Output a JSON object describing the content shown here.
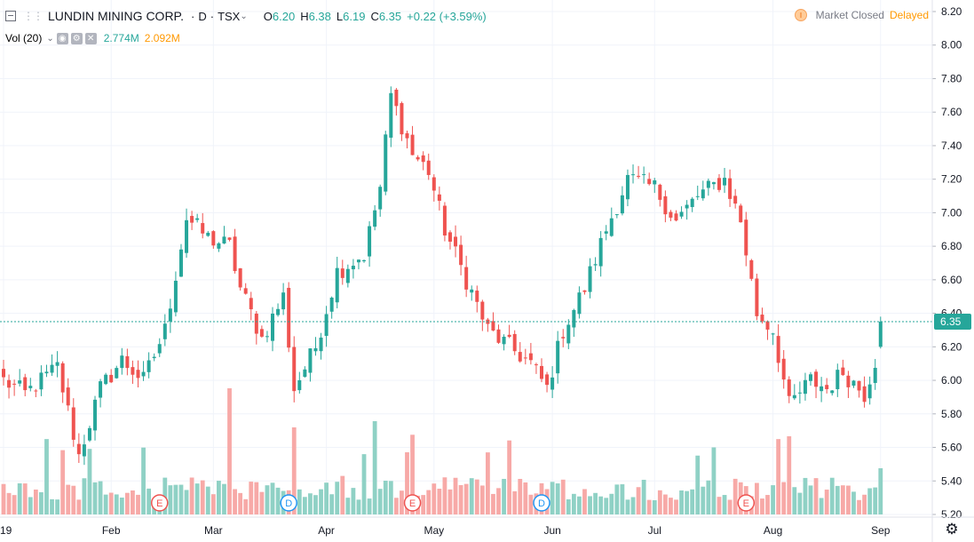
{
  "header": {
    "symbol": "LUNDIN MINING CORP.",
    "interval": "D",
    "exchange": "TSX",
    "open_label": "O",
    "open": "6.20",
    "high_label": "H",
    "high": "6.38",
    "low_label": "L",
    "low": "6.19",
    "close_label": "C",
    "close": "6.35",
    "change": "+0.22 (+3.59%)",
    "market_status": "Market Closed",
    "delay_status": "Delayed"
  },
  "volume_legend": {
    "label": "Vol (20)",
    "volume": "2.774M",
    "volume_ma": "2.092M"
  },
  "colors": {
    "up": "#26a69a",
    "down": "#ef5350",
    "up_vol": "#8fd1c5",
    "down_vol": "#f7a9a7",
    "last_price_bg": "#26a69a"
  },
  "chart_data": {
    "type": "candlestick",
    "title": "LUNDIN MINING CORP. · D · TSX",
    "ylim": [
      5.2,
      8.24
    ],
    "y_ticks": [
      "8.20",
      "8.00",
      "7.80",
      "7.60",
      "7.40",
      "7.20",
      "7.00",
      "6.80",
      "6.60",
      "6.40",
      "6.20",
      "6.00",
      "5.80",
      "5.60",
      "5.40",
      "5.20"
    ],
    "x_labels": [
      {
        "label": "19",
        "index": 0
      },
      {
        "label": "Feb",
        "index": 20
      },
      {
        "label": "Mar",
        "index": 39
      },
      {
        "label": "Apr",
        "index": 60
      },
      {
        "label": "May",
        "index": 80
      },
      {
        "label": "Jun",
        "index": 102
      },
      {
        "label": "Jul",
        "index": 121
      },
      {
        "label": "Aug",
        "index": 143
      },
      {
        "label": "Sep",
        "index": 163
      }
    ],
    "last_price": "6.35",
    "events": [
      {
        "label": "E",
        "index": 29
      },
      {
        "label": "D",
        "index": 53
      },
      {
        "label": "E",
        "index": 76
      },
      {
        "label": "D",
        "index": 100
      },
      {
        "label": "E",
        "index": 138
      }
    ],
    "close_keys": [
      [
        0,
        6.0
      ],
      [
        4,
        5.92
      ],
      [
        10,
        6.08
      ],
      [
        14,
        5.55
      ],
      [
        18,
        5.95
      ],
      [
        22,
        6.12
      ],
      [
        26,
        6.0
      ],
      [
        30,
        6.3
      ],
      [
        34,
        6.97
      ],
      [
        38,
        6.85
      ],
      [
        42,
        6.8
      ],
      [
        44,
        6.55
      ],
      [
        48,
        6.25
      ],
      [
        52,
        6.5
      ],
      [
        54,
        5.95
      ],
      [
        58,
        6.2
      ],
      [
        62,
        6.65
      ],
      [
        67,
        6.75
      ],
      [
        70,
        7.15
      ],
      [
        72,
        7.7
      ],
      [
        76,
        7.35
      ],
      [
        79,
        7.25
      ],
      [
        82,
        6.9
      ],
      [
        86,
        6.6
      ],
      [
        90,
        6.3
      ],
      [
        94,
        6.2
      ],
      [
        98,
        6.1
      ],
      [
        101,
        5.95
      ],
      [
        104,
        6.3
      ],
      [
        108,
        6.55
      ],
      [
        112,
        6.9
      ],
      [
        116,
        7.2
      ],
      [
        121,
        7.15
      ],
      [
        125,
        6.95
      ],
      [
        129,
        7.1
      ],
      [
        134,
        7.2
      ],
      [
        137,
        6.95
      ],
      [
        140,
        6.4
      ],
      [
        143,
        6.3
      ],
      [
        146,
        5.85
      ],
      [
        150,
        6.0
      ],
      [
        153,
        5.95
      ],
      [
        156,
        6.05
      ],
      [
        160,
        5.92
      ],
      [
        162,
        6.12
      ],
      [
        163,
        6.35
      ]
    ],
    "volume_pattern": "daily volume bars, ~164 sessions, heights in shares (relative)"
  }
}
